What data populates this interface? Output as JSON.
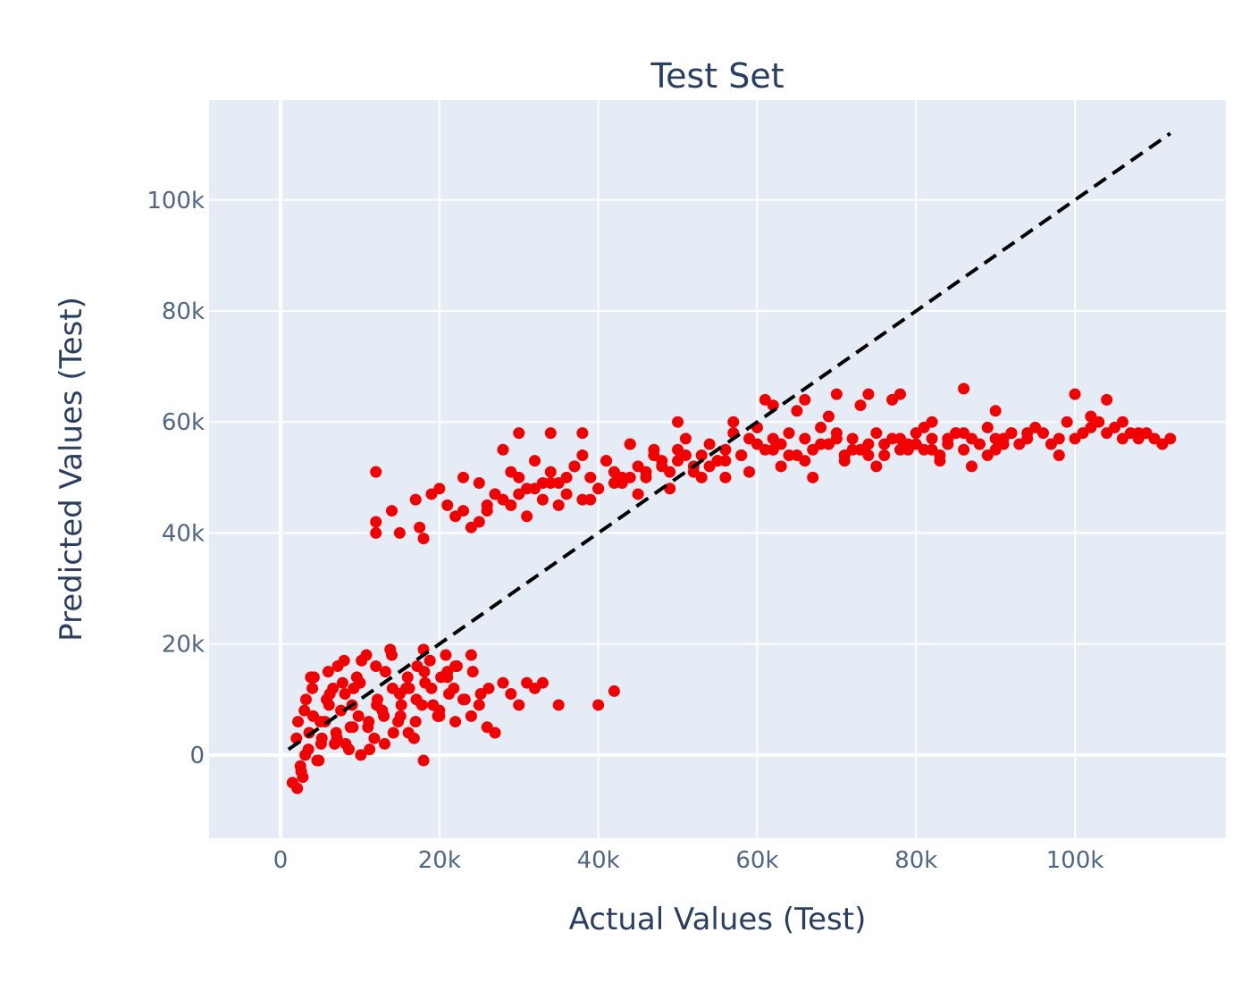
{
  "chart_data": {
    "type": "scatter",
    "title": "Test Set",
    "xlabel": "Actual Values (Test)",
    "ylabel": "Predicted Values (Test)",
    "xlim": [
      -9000,
      119000
    ],
    "ylim": [
      -15000,
      118000
    ],
    "x_ticks": [
      {
        "value": 0,
        "label": "0"
      },
      {
        "value": 20000,
        "label": "20k"
      },
      {
        "value": 40000,
        "label": "40k"
      },
      {
        "value": 60000,
        "label": "60k"
      },
      {
        "value": 80000,
        "label": "80k"
      },
      {
        "value": 100000,
        "label": "100k"
      }
    ],
    "y_ticks": [
      {
        "value": 0,
        "label": "0"
      },
      {
        "value": 20000,
        "label": "20k"
      },
      {
        "value": 40000,
        "label": "40k"
      },
      {
        "value": 60000,
        "label": "60k"
      },
      {
        "value": 80000,
        "label": "80k"
      },
      {
        "value": 100000,
        "label": "100k"
      }
    ],
    "grid": true,
    "colors": {
      "background": "#e5ecf6",
      "grid": "#ffffff",
      "points": "#f20000",
      "reference_line": "#000000"
    },
    "reference_line": {
      "style": "dashed",
      "x": [
        1000,
        112000
      ],
      "y": [
        1000,
        112000
      ]
    },
    "series": [
      {
        "clusters_note": "approximate distribution of points",
        "x": [
          1500,
          2000,
          2500,
          3000,
          3500,
          4000,
          5000,
          6000,
          7000,
          8000,
          9000,
          10000,
          11000,
          12000,
          13000,
          14000,
          15000,
          16000,
          17000,
          18000,
          19000,
          20000,
          21000,
          22000,
          23000,
          24000,
          25000,
          26000,
          27000,
          28000,
          29000,
          30000,
          31000,
          32000,
          33000,
          35000,
          40000,
          42000,
          2200,
          3200,
          4200,
          5200,
          6200,
          7200,
          8200,
          9200,
          10200,
          11200,
          12200,
          13200,
          14200,
          15200,
          16200,
          17200,
          18200,
          19200,
          20200,
          21200,
          22200,
          23200,
          24200,
          25200,
          26200,
          2800,
          3800,
          4800,
          5800,
          6800,
          7800,
          8800,
          9800,
          10800,
          11800,
          12800,
          13800,
          14800,
          15800,
          16800,
          17800,
          18800,
          19800,
          20800,
          21800,
          2100,
          2600,
          3100,
          3600,
          4100,
          4600,
          5100,
          5600,
          6100,
          6600,
          7100,
          7600,
          8100,
          8600,
          9100,
          9600,
          10100,
          11100,
          12100,
          13100,
          14100,
          15100,
          16100,
          17100,
          18100,
          12000,
          12000,
          12000,
          14000,
          15000,
          17000,
          17500,
          18000,
          19000,
          20000,
          21000,
          22000,
          23000,
          24000,
          25000,
          26000,
          27000,
          28000,
          29000,
          30000,
          31000,
          32000,
          33000,
          34000,
          35000,
          36000,
          37000,
          38000,
          39000,
          40000,
          41000,
          42000,
          43000,
          44000,
          45000,
          46000,
          47000,
          48000,
          49000,
          50000,
          51000,
          52000,
          53000,
          54000,
          55000,
          56000,
          57000,
          58000,
          59000,
          60000,
          61000,
          62000,
          63000,
          64000,
          65000,
          66000,
          67000,
          68000,
          69000,
          70000,
          71000,
          72000,
          73000,
          74000,
          75000,
          76000,
          77000,
          78000,
          79000,
          80000,
          81000,
          82000,
          83000,
          84000,
          85000,
          86000,
          87000,
          88000,
          89000,
          90000,
          91000,
          92000,
          93000,
          94000,
          95000,
          96000,
          97000,
          98000,
          99000,
          100000,
          101000,
          102000,
          103000,
          104000,
          105000,
          106000,
          107000,
          108000,
          109000,
          110000,
          111000,
          112000,
          18000,
          20000,
          22000,
          24000,
          26000,
          28000,
          30000,
          32000,
          34000,
          36000,
          38000,
          40000,
          42000,
          44000,
          46000,
          48000,
          50000,
          52000,
          54000,
          56000,
          58000,
          60000,
          62000,
          64000,
          66000,
          68000,
          70000,
          72000,
          74000,
          76000,
          78000,
          80000,
          82000,
          84000,
          86000,
          88000,
          90000,
          92000,
          21000,
          23000,
          25000,
          27000,
          29000,
          31000,
          33000,
          35000,
          37000,
          39000,
          41000,
          43000,
          45000,
          47000,
          49000,
          51000,
          53000,
          55000,
          57000,
          59000,
          61000,
          63000,
          65000,
          67000,
          69000,
          71000,
          73000,
          75000,
          77000,
          79000,
          81000,
          83000,
          85000,
          87000,
          89000,
          91000,
          30000,
          34000,
          38000,
          44000,
          50000,
          56000,
          62000,
          66000,
          70000,
          74000,
          78000,
          82000,
          86000,
          90000,
          94000,
          98000,
          100000,
          102000,
          104000,
          106000,
          108000
        ],
        "y": [
          -5000,
          3000,
          -2000,
          8000,
          1000,
          12000,
          6000,
          15000,
          4000,
          17000,
          9000,
          13000,
          5000,
          16000,
          7000,
          18000,
          11000,
          14000,
          6000,
          19000,
          12000,
          8000,
          15000,
          6000,
          10000,
          7000,
          9000,
          5000,
          4000,
          13000,
          11000,
          9000,
          13000,
          12000,
          13000,
          9000,
          9000,
          11500,
          6000,
          10000,
          14000,
          3000,
          11000,
          16000,
          2000,
          12000,
          17000,
          1000,
          10000,
          15000,
          4000,
          9000,
          12000,
          16000,
          13000,
          9000,
          14000,
          11000,
          16000,
          10000,
          15000,
          11000,
          12000,
          -4000,
          14000,
          -1000,
          10000,
          2000,
          13000,
          5000,
          7000,
          18000,
          3000,
          8000,
          19000,
          6000,
          12000,
          3000,
          9000,
          17000,
          7000,
          18000,
          12000,
          -6000,
          -3000,
          0,
          4000,
          7000,
          -1000,
          2000,
          6000,
          9000,
          12000,
          3000,
          8000,
          11000,
          1000,
          5000,
          14000,
          0,
          6000,
          9000,
          2000,
          12000,
          7000,
          4000,
          10000,
          15000,
          51000,
          42000,
          40000,
          44000,
          40000,
          46000,
          41000,
          39000,
          47000,
          48000,
          45000,
          43000,
          50000,
          41000,
          49000,
          44000,
          47000,
          55000,
          45000,
          50000,
          48000,
          53000,
          46000,
          51000,
          49000,
          47000,
          52000,
          54000,
          50000,
          48000,
          53000,
          51000,
          49000,
          56000,
          52000,
          50000,
          54000,
          53000,
          51000,
          55000,
          57000,
          52000,
          54000,
          56000,
          53000,
          55000,
          58000,
          54000,
          57000,
          59000,
          55000,
          57000,
          56000,
          58000,
          54000,
          57000,
          55000,
          59000,
          56000,
          58000,
          54000,
          57000,
          55000,
          56000,
          58000,
          54000,
          57000,
          55000,
          56000,
          58000,
          55000,
          57000,
          54000,
          56000,
          58000,
          55000,
          57000,
          56000,
          54000,
          55000,
          57000,
          58000,
          56000,
          57000,
          59000,
          58000,
          56000,
          57000,
          60000,
          57000,
          58000,
          59000,
          60000,
          58000,
          59000,
          57000,
          58000,
          57000,
          58000,
          57000,
          56000,
          57000,
          -1000,
          7000,
          16000,
          18000,
          45000,
          46000,
          47000,
          48000,
          49000,
          50000,
          46000,
          48000,
          49000,
          50000,
          51000,
          52000,
          53000,
          51000,
          52000,
          53000,
          54000,
          56000,
          55000,
          54000,
          53000,
          56000,
          57000,
          55000,
          54000,
          56000,
          57000,
          56000,
          55000,
          57000,
          58000,
          56000,
          57000,
          58000,
          14000,
          44000,
          42000,
          47000,
          51000,
          43000,
          49000,
          45000,
          52000,
          46000,
          53000,
          50000,
          47000,
          55000,
          48000,
          54000,
          50000,
          53000,
          60000,
          51000,
          64000,
          52000,
          62000,
          50000,
          61000,
          53000,
          63000,
          52000,
          64000,
          55000,
          59000,
          53000,
          58000,
          52000,
          59000,
          56000,
          58000,
          58000,
          58000,
          56000,
          60000,
          50000,
          63000,
          64000,
          65000,
          65000,
          65000,
          60000,
          66000,
          62000,
          58000,
          54000,
          65000,
          61000,
          64000,
          60000,
          58000
        ]
      }
    ]
  }
}
